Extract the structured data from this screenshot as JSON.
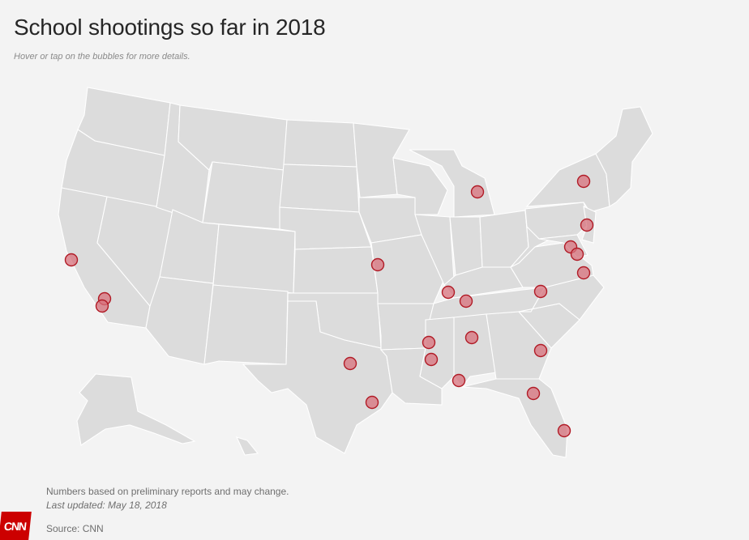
{
  "title": "School shootings so far in 2018",
  "subtitle": "Hover or tap on the bubbles for more details.",
  "footer": {
    "note": "Numbers based on preliminary reports and may change.",
    "updated": "Last updated: May 18, 2018",
    "source": "Source: CNN"
  },
  "logo": "CNN",
  "colors": {
    "background": "#f3f3f3",
    "land": "#dcdcdc",
    "borders": "#ffffff",
    "bubble_fill": "#d8727c",
    "bubble_stroke": "#b11b26",
    "logo": "#cc0000"
  },
  "incidents": [
    {
      "id": "ca-north"
    },
    {
      "id": "ca-south-1"
    },
    {
      "id": "ca-south-2"
    },
    {
      "id": "mo"
    },
    {
      "id": "mi"
    },
    {
      "id": "ny"
    },
    {
      "id": "nj"
    },
    {
      "id": "md-1"
    },
    {
      "id": "md-2"
    },
    {
      "id": "va"
    },
    {
      "id": "nc"
    },
    {
      "id": "ky-west"
    },
    {
      "id": "ky"
    },
    {
      "id": "al"
    },
    {
      "id": "ga"
    },
    {
      "id": "ms-1"
    },
    {
      "id": "ms-2"
    },
    {
      "id": "al-south"
    },
    {
      "id": "fl-north"
    },
    {
      "id": "fl-south"
    },
    {
      "id": "tx-north"
    },
    {
      "id": "tx-south"
    }
  ]
}
